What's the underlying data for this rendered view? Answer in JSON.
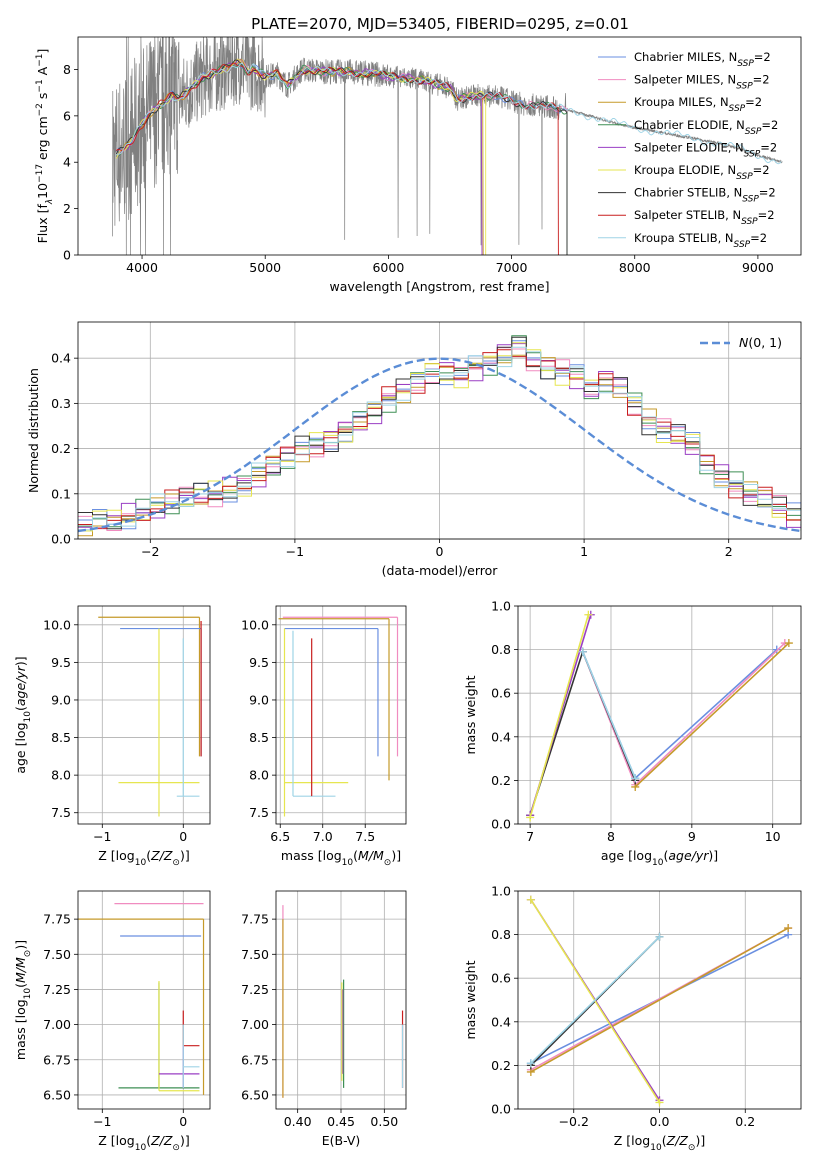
{
  "figure_title": "PLATE=2070, MJD=53405, FIBERID=0295, z=0.01",
  "series_names": [
    "Chabrier MILES",
    "Salpeter MILES",
    "Kroupa MILES",
    "Chabrier ELODIE",
    "Salpeter ELODIE",
    "Kroupa ELODIE",
    "Chabrier STELIB",
    "Salpeter STELIB",
    "Kroupa STELIB"
  ],
  "series_colors": [
    "#6a8fe0",
    "#f08cc0",
    "#c59a2a",
    "#3f8f55",
    "#9a3fc4",
    "#e6e650",
    "#333333",
    "#c81e1e",
    "#9fd4e6"
  ],
  "legend_suffix": "=2",
  "chart_data": [
    {
      "type": "line",
      "title": "PLATE=2070, MJD=53405, FIBERID=0295, z=0.01",
      "xlabel": "wavelength [Angstrom, rest frame]",
      "ylabel_parts": [
        "Flux [f",
        "λ",
        "10",
        "−17",
        " erg cm",
        "−2",
        " s",
        "−1",
        " A",
        "−1",
        "]"
      ],
      "xlim": [
        3480,
        9350
      ],
      "ylim": [
        0,
        9.4
      ],
      "xticks": [
        4000,
        5000,
        6000,
        7000,
        8000,
        9000
      ],
      "yticks": [
        0,
        2,
        4,
        6,
        8
      ],
      "data_color": "#808080",
      "continuum": {
        "x": [
          3760,
          3820,
          3900,
          3960,
          4000,
          4080,
          4150,
          4250,
          4300,
          4400,
          4500,
          4650,
          4800,
          4860,
          4900,
          5000,
          5100,
          5180,
          5300,
          5500,
          5700,
          5900,
          6000,
          6200,
          6300,
          6500,
          6560,
          6700,
          6900,
          7100,
          7300,
          7500,
          7700,
          7900,
          8100,
          8300,
          8500,
          8700,
          8900,
          9000,
          9200
        ],
        "y": [
          4.2,
          4.5,
          4.8,
          5.3,
          5.6,
          6.2,
          6.5,
          6.9,
          6.7,
          7.2,
          7.7,
          8.0,
          8.3,
          7.9,
          8.1,
          7.7,
          7.8,
          7.3,
          8.0,
          7.9,
          7.9,
          7.8,
          7.7,
          7.6,
          7.5,
          7.2,
          6.7,
          6.9,
          6.8,
          6.5,
          6.4,
          6.2,
          5.9,
          5.6,
          5.4,
          5.2,
          5.0,
          4.8,
          4.5,
          4.3,
          4.0
        ]
      },
      "legend": {
        "loc": "upper right",
        "label_suffix": "=2"
      }
    },
    {
      "type": "histogram",
      "xlabel": "(data-model)/error",
      "ylabel": "Normed distribution",
      "xlim": [
        -2.5,
        2.5
      ],
      "ylim": [
        0,
        0.48
      ],
      "xticks": [
        -2,
        -1,
        0,
        1,
        2
      ],
      "yticks": [
        0.0,
        0.1,
        0.2,
        0.3,
        0.4
      ],
      "bin_width": 0.1,
      "bin_start": -2.5,
      "base_values": [
        0.03,
        0.04,
        0.04,
        0.05,
        0.06,
        0.07,
        0.08,
        0.09,
        0.1,
        0.1,
        0.11,
        0.12,
        0.14,
        0.16,
        0.18,
        0.2,
        0.21,
        0.22,
        0.24,
        0.26,
        0.28,
        0.31,
        0.33,
        0.35,
        0.37,
        0.37,
        0.36,
        0.38,
        0.39,
        0.41,
        0.43,
        0.4,
        0.38,
        0.37,
        0.36,
        0.33,
        0.35,
        0.34,
        0.3,
        0.26,
        0.24,
        0.23,
        0.21,
        0.17,
        0.14,
        0.12,
        0.1,
        0.09,
        0.07,
        0.05,
        0.04,
        0.04,
        0.03
      ],
      "ref_curve": {
        "name": "N(0, 1)",
        "mean": 0,
        "sigma": 1,
        "color": "#5b8dd6"
      },
      "legend": {
        "loc": "upper right"
      }
    },
    {
      "type": "errorbar",
      "xlabel": "Z [log10(Z/Z⊙)]",
      "ylabel": "age [log10(age/yr)]",
      "xlim": [
        -1.3,
        0.33
      ],
      "ylim": [
        7.35,
        10.25
      ],
      "xticks": [
        -1,
        0
      ],
      "yticks": [
        7.5,
        8.0,
        8.5,
        9.0,
        9.5,
        10.0
      ],
      "points": [
        {
          "x": 0.2,
          "y": 10.1,
          "xerr": [
            1.25,
            0.0
          ],
          "yerr": [
            1.85,
            0.0
          ],
          "series": 2
        },
        {
          "x": 0.22,
          "y": 9.95,
          "xerr": [
            1.0,
            0.0
          ],
          "yerr": [
            1.7,
            0.0
          ],
          "series": 0
        },
        {
          "x": -0.3,
          "y": 7.9,
          "xerr": [
            0.5,
            0.5
          ],
          "yerr": [
            0.45,
            2.05
          ],
          "series": 5
        },
        {
          "x": 0.0,
          "y": 7.72,
          "xerr": [
            0.08,
            0.2
          ],
          "yerr": [
            0.0,
            2.1
          ],
          "series": 8
        },
        {
          "x": 0.22,
          "y": 8.25,
          "xerr": [
            0.0,
            0.0
          ],
          "yerr": [
            0.0,
            1.8
          ],
          "series": 7
        }
      ]
    },
    {
      "type": "errorbar",
      "xlabel": "mass [log10(M/M⊙)]",
      "ylabel": "",
      "xlim": [
        6.45,
        7.98
      ],
      "ylim": [
        7.35,
        10.25
      ],
      "xticks": [
        6.5,
        7.0,
        7.5
      ],
      "yticks": [
        7.5,
        8.0,
        8.5,
        9.0,
        9.5,
        10.0
      ],
      "points": [
        {
          "x": 7.88,
          "y": 10.1,
          "xerr": [
            1.35,
            0.0
          ],
          "yerr": [
            1.85,
            0.0
          ],
          "series": 1
        },
        {
          "x": 7.78,
          "y": 10.08,
          "xerr": [
            1.3,
            0.0
          ],
          "yerr": [
            2.15,
            0.0
          ],
          "series": 2
        },
        {
          "x": 7.65,
          "y": 9.95,
          "xerr": [
            1.1,
            0.0
          ],
          "yerr": [
            1.7,
            0.0
          ],
          "series": 0
        },
        {
          "x": 6.55,
          "y": 7.9,
          "xerr": [
            0.0,
            0.75
          ],
          "yerr": [
            0.45,
            2.05
          ],
          "series": 5
        },
        {
          "x": 6.65,
          "y": 7.72,
          "xerr": [
            0.0,
            0.5
          ],
          "yerr": [
            0.0,
            2.2
          ],
          "series": 8
        },
        {
          "x": 6.87,
          "y": 7.72,
          "xerr": [
            0.0,
            0.0
          ],
          "yerr": [
            0.0,
            2.1
          ],
          "series": 7
        }
      ]
    },
    {
      "type": "line",
      "xlabel": "age [log10(age/yr)]",
      "ylabel": "mass weight",
      "xlim": [
        6.85,
        10.35
      ],
      "ylim": [
        0,
        1
      ],
      "xticks": [
        7,
        8,
        9,
        10
      ],
      "yticks": [
        0.0,
        0.2,
        0.4,
        0.6,
        0.8,
        1.0
      ],
      "series": [
        {
          "x": [
            7.65,
            8.3,
            10.05
          ],
          "y": [
            0.79,
            0.21,
            0.8
          ],
          "series": 0
        },
        {
          "x": [
            7.65,
            8.3,
            10.15
          ],
          "y": [
            0.79,
            0.18,
            0.83
          ],
          "series": 1
        },
        {
          "x": [
            8.3,
            10.2
          ],
          "y": [
            0.17,
            0.83
          ],
          "series": 2
        },
        {
          "x": [
            7.0,
            7.65,
            8.3
          ],
          "y": [
            0.04,
            0.79,
            0.2
          ],
          "series": 6
        },
        {
          "x": [
            7.0,
            7.75
          ],
          "y": [
            0.04,
            0.96
          ],
          "series": 4
        },
        {
          "x": [
            7.0,
            7.72
          ],
          "y": [
            0.03,
            0.96
          ],
          "series": 5
        },
        {
          "x": [
            7.65,
            8.3
          ],
          "y": [
            0.79,
            0.21
          ],
          "series": 8
        }
      ]
    },
    {
      "type": "errorbar",
      "xlabel": "Z [log10(Z/Z⊙)]",
      "ylabel": "mass [log10(M/M⊙)]",
      "xlim": [
        -1.3,
        0.33
      ],
      "ylim": [
        6.4,
        7.95
      ],
      "xticks": [
        -1,
        0
      ],
      "yticks": [
        6.5,
        6.75,
        7.0,
        7.25,
        7.5,
        7.75
      ],
      "points": [
        {
          "x": 0.25,
          "y": 7.86,
          "xerr": [
            1.1,
            0.0
          ],
          "yerr": [
            0.0,
            0.0
          ],
          "series": 1
        },
        {
          "x": 0.25,
          "y": 7.75,
          "xerr": [
            1.55,
            0.0
          ],
          "yerr": [
            1.25,
            0.0
          ],
          "series": 2
        },
        {
          "x": 0.22,
          "y": 7.63,
          "xerr": [
            1.0,
            0.0
          ],
          "yerr": [
            0.0,
            0.0
          ],
          "series": 0
        },
        {
          "x": -0.3,
          "y": 6.55,
          "xerr": [
            0.5,
            0.5
          ],
          "yerr": [
            0.0,
            0.75
          ],
          "series": 3
        },
        {
          "x": -0.3,
          "y": 6.53,
          "xerr": [
            0.0,
            0.5
          ],
          "yerr": [
            0.0,
            0.78
          ],
          "series": 5
        },
        {
          "x": 0.0,
          "y": 6.65,
          "xerr": [
            0.3,
            0.2
          ],
          "yerr": [
            0.1,
            0.2
          ],
          "series": 4
        },
        {
          "x": 0.0,
          "y": 6.85,
          "xerr": [
            0.0,
            0.2
          ],
          "yerr": [
            0.0,
            0.25
          ],
          "series": 7
        },
        {
          "x": 0.0,
          "y": 6.7,
          "xerr": [
            0.0,
            0.2
          ],
          "yerr": [
            0.15,
            0.3
          ],
          "series": 8
        }
      ]
    },
    {
      "type": "errorbar",
      "xlabel": "E(B-V)",
      "ylabel": "",
      "xlim": [
        0.375,
        0.525
      ],
      "ylim": [
        6.4,
        7.95
      ],
      "xticks": [
        0.4,
        0.45,
        0.5
      ],
      "yticks": [
        6.5,
        6.75,
        7.0,
        7.25,
        7.5,
        7.75
      ],
      "points": [
        {
          "x": 0.383,
          "y": 7.0,
          "xerr": [
            0.0,
            0.0
          ],
          "yerr": [
            0.52,
            0.85
          ],
          "series": 1
        },
        {
          "x": 0.383,
          "y": 7.0,
          "xerr": [
            0.0,
            0.0
          ],
          "yerr": [
            0.52,
            0.75
          ],
          "series": 2
        },
        {
          "x": 0.453,
          "y": 6.9,
          "xerr": [
            0.0,
            0.0
          ],
          "yerr": [
            0.35,
            0.42
          ],
          "series": 3
        },
        {
          "x": 0.452,
          "y": 6.9,
          "xerr": [
            0.0,
            0.0
          ],
          "yerr": [
            0.25,
            0.35
          ],
          "series": 4
        },
        {
          "x": 0.451,
          "y": 6.95,
          "xerr": [
            0.0,
            0.0
          ],
          "yerr": [
            0.35,
            0.35
          ],
          "series": 5
        },
        {
          "x": 0.521,
          "y": 6.8,
          "xerr": [
            0.0,
            0.0
          ],
          "yerr": [
            0.25,
            0.3
          ],
          "series": 7
        },
        {
          "x": 0.521,
          "y": 6.75,
          "xerr": [
            0.0,
            0.0
          ],
          "yerr": [
            0.2,
            0.25
          ],
          "series": 8
        }
      ]
    },
    {
      "type": "line",
      "xlabel": "Z [log10(Z/Z⊙)]",
      "ylabel": "mass weight",
      "xlim": [
        -0.33,
        0.33
      ],
      "ylim": [
        0,
        1
      ],
      "xticks": [
        -0.2,
        0.0,
        0.2
      ],
      "yticks": [
        0.0,
        0.2,
        0.4,
        0.6,
        0.8,
        1.0
      ],
      "series": [
        {
          "x": [
            -0.3,
            0.3
          ],
          "y": [
            0.21,
            0.8
          ],
          "series": 0
        },
        {
          "x": [
            -0.3,
            0.3
          ],
          "y": [
            0.18,
            0.83
          ],
          "series": 1
        },
        {
          "x": [
            -0.3,
            0.3
          ],
          "y": [
            0.17,
            0.83
          ],
          "series": 2
        },
        {
          "x": [
            -0.3,
            0.0
          ],
          "y": [
            0.2,
            0.79
          ],
          "series": 6
        },
        {
          "x": [
            -0.3,
            0.0
          ],
          "y": [
            0.96,
            0.04
          ],
          "series": 4
        },
        {
          "x": [
            -0.3,
            0.0
          ],
          "y": [
            0.96,
            0.03
          ],
          "series": 5
        },
        {
          "x": [
            -0.3,
            0.0
          ],
          "y": [
            0.21,
            0.79
          ],
          "series": 8
        }
      ]
    }
  ]
}
